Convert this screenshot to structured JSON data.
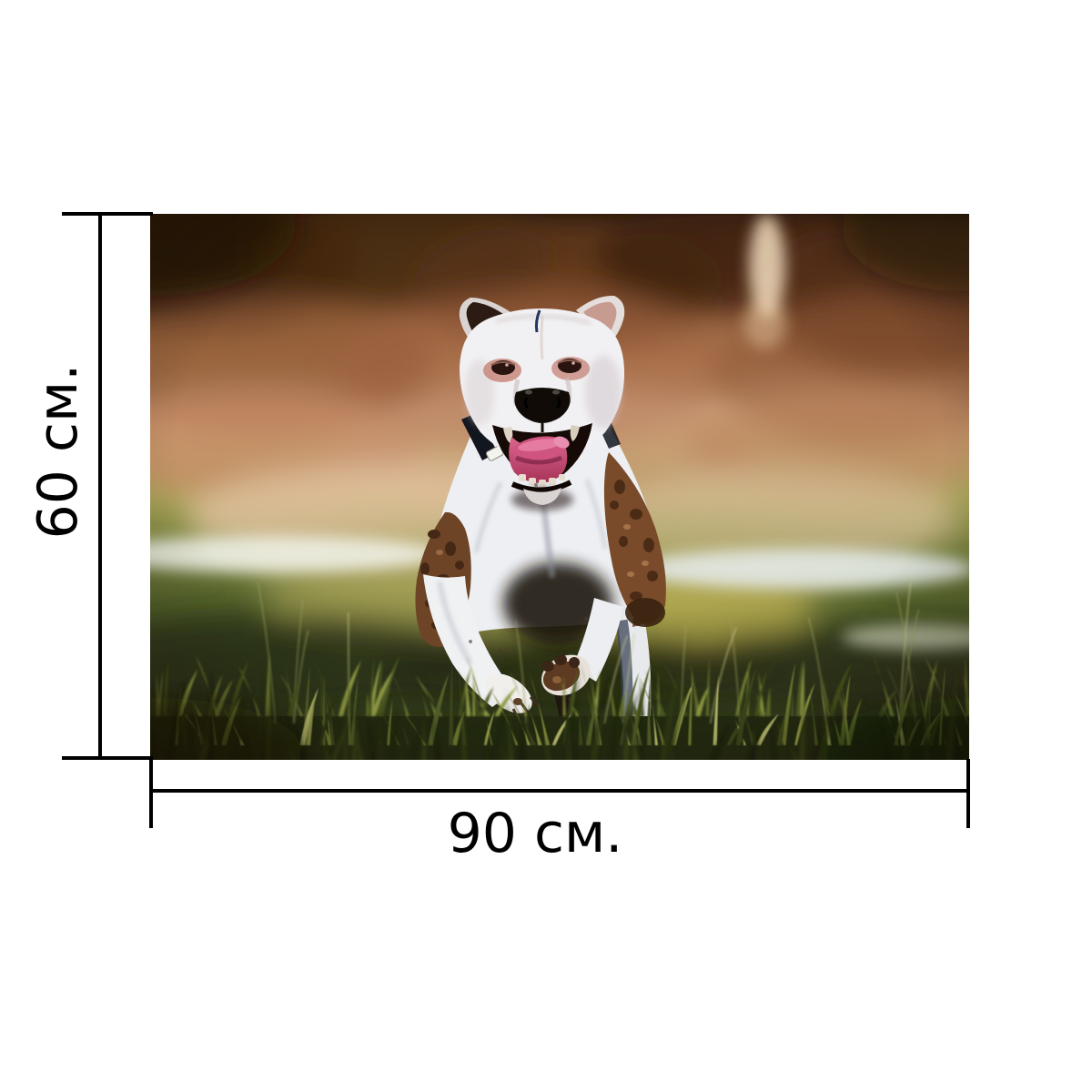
{
  "figure": {
    "type": "product-size-diagram",
    "background": "#ffffff",
    "line_color": "#000000",
    "height_label": "60 см.",
    "width_label": "90 см."
  },
  "photo": {
    "name": "dog-running-photo",
    "alt": "White Staffordshire terrier with brindle patches running toward the camera across a grassy field, tongue out, blurred warm autumn background",
    "palette": {
      "background_brown_dark": "#46290f",
      "background_rust": "#8f5835",
      "background_salmon": "#c58a64",
      "background_pale_peach": "#e5c6a5",
      "meadow_olive": "#a8a458",
      "grass_dark": "#2c3818",
      "grass_highlight": "#bcc06e",
      "dog_white": "#f1f0f2",
      "brindle_brown": "#6e4427",
      "tongue_pink": "#cf5580",
      "nose_black": "#100b07"
    }
  }
}
